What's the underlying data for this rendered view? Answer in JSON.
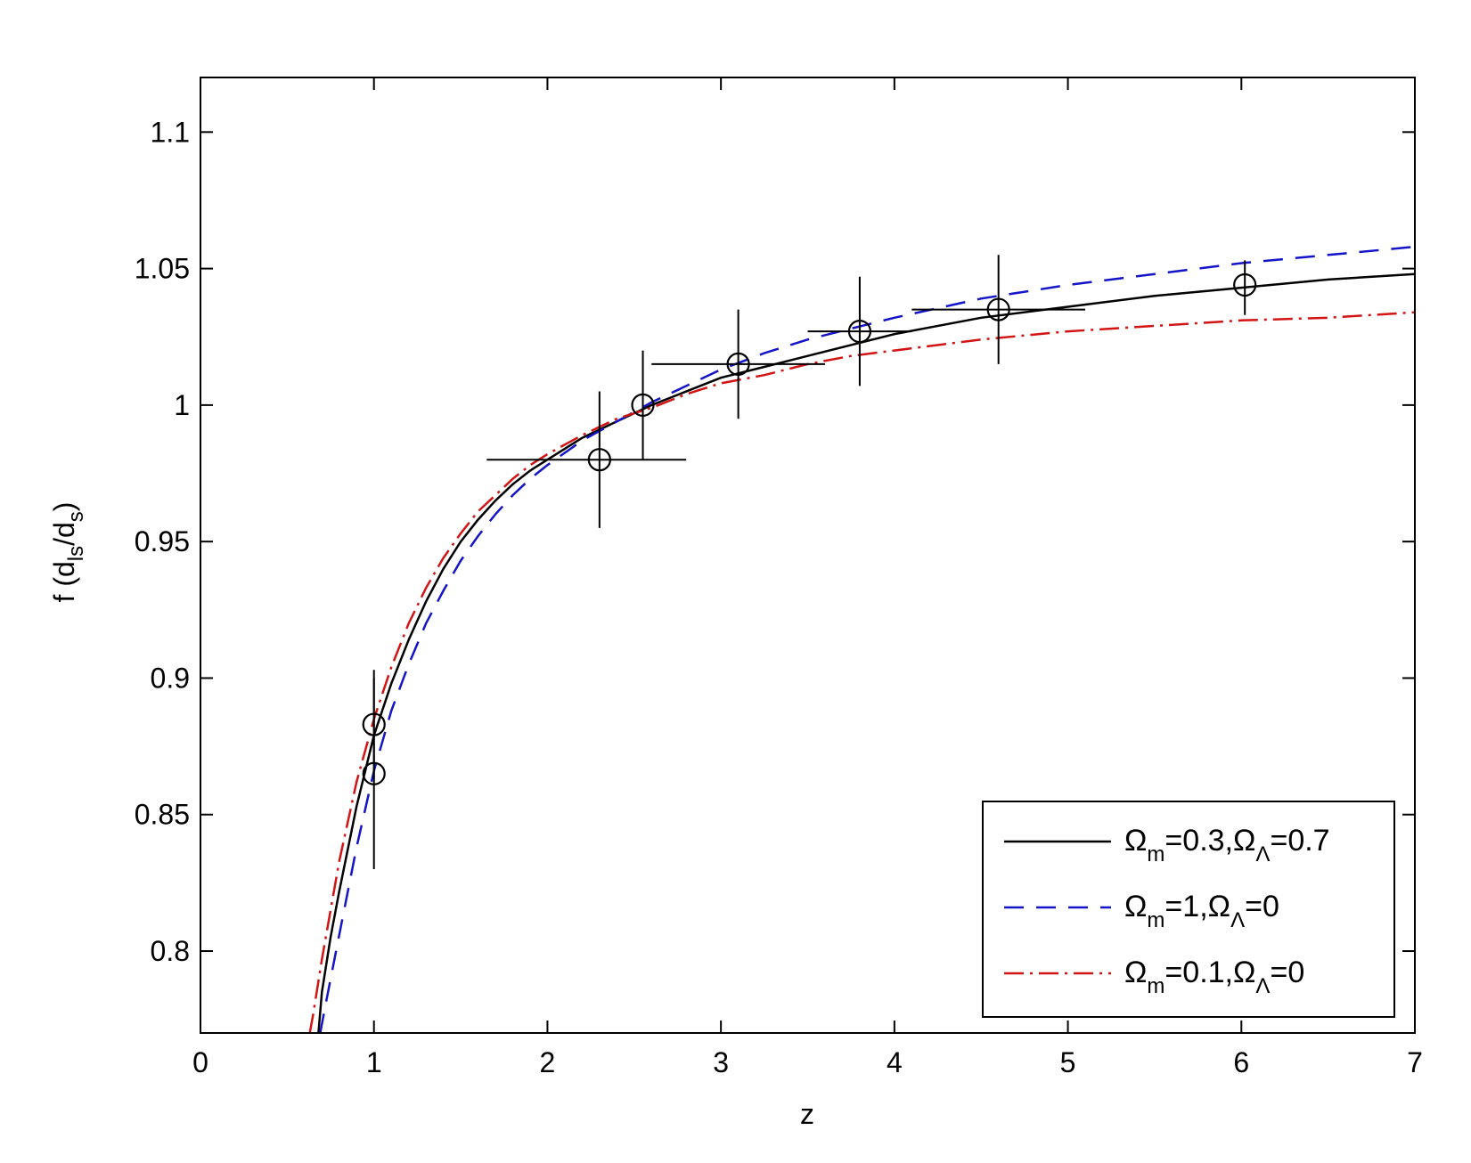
{
  "chart_data": {
    "type": "line",
    "title": "",
    "xlabel": "z",
    "ylabel": {
      "prefix": "f (d",
      "sub1": "ls",
      "mid": "/d",
      "sub2": "s",
      "suffix": ")"
    },
    "xlim": [
      0,
      7
    ],
    "ylim": [
      0.77,
      1.12
    ],
    "xticks": [
      0,
      1,
      2,
      3,
      4,
      5,
      6,
      7
    ],
    "xtick_labels": [
      "0",
      "1",
      "2",
      "3",
      "4",
      "5",
      "6",
      "7"
    ],
    "yticks": [
      0.8,
      0.85,
      0.9,
      0.95,
      1.0,
      1.05,
      1.1
    ],
    "ytick_labels": [
      "0.8",
      "0.85",
      "0.9",
      "0.95",
      "1",
      "1.05",
      "1.1"
    ],
    "grid": false,
    "legend_position": "bottom-right",
    "series": [
      {
        "legend": {
          "om": "0.3",
          "ol": "0.7"
        },
        "color": "#000000",
        "style": "solid",
        "points": [
          [
            0.68,
            0.77
          ],
          [
            0.7,
            0.785
          ],
          [
            0.75,
            0.805
          ],
          [
            0.8,
            0.822
          ],
          [
            0.9,
            0.853
          ],
          [
            1.0,
            0.879
          ],
          [
            1.1,
            0.898
          ],
          [
            1.2,
            0.914
          ],
          [
            1.3,
            0.928
          ],
          [
            1.4,
            0.94
          ],
          [
            1.5,
            0.95
          ],
          [
            1.6,
            0.958
          ],
          [
            1.7,
            0.965
          ],
          [
            1.8,
            0.971
          ],
          [
            1.9,
            0.976
          ],
          [
            2.0,
            0.98
          ],
          [
            2.2,
            0.988
          ],
          [
            2.4,
            0.994
          ],
          [
            2.6,
            1.0
          ],
          [
            2.8,
            1.005
          ],
          [
            3.0,
            1.01
          ],
          [
            3.25,
            1.014
          ],
          [
            3.5,
            1.018
          ],
          [
            3.75,
            1.022
          ],
          [
            4.0,
            1.026
          ],
          [
            4.5,
            1.032
          ],
          [
            5.0,
            1.036
          ],
          [
            5.5,
            1.04
          ],
          [
            6.0,
            1.043
          ],
          [
            6.5,
            1.046
          ],
          [
            7.0,
            1.048
          ]
        ]
      },
      {
        "legend": {
          "om": "1",
          "ol": "0"
        },
        "color": "#1414c8",
        "style": "dashed",
        "points": [
          [
            0.69,
            0.77
          ],
          [
            0.72,
            0.78
          ],
          [
            0.8,
            0.806
          ],
          [
            0.9,
            0.838
          ],
          [
            1.0,
            0.866
          ],
          [
            1.1,
            0.888
          ],
          [
            1.2,
            0.905
          ],
          [
            1.3,
            0.92
          ],
          [
            1.4,
            0.932
          ],
          [
            1.5,
            0.943
          ],
          [
            1.6,
            0.952
          ],
          [
            1.7,
            0.96
          ],
          [
            1.8,
            0.967
          ],
          [
            1.9,
            0.973
          ],
          [
            2.0,
            0.978
          ],
          [
            2.2,
            0.987
          ],
          [
            2.4,
            0.994
          ],
          [
            2.6,
            1.001
          ],
          [
            2.8,
            1.007
          ],
          [
            3.0,
            1.013
          ],
          [
            3.25,
            1.019
          ],
          [
            3.5,
            1.024
          ],
          [
            3.75,
            1.028
          ],
          [
            4.0,
            1.032
          ],
          [
            4.5,
            1.039
          ],
          [
            5.0,
            1.044
          ],
          [
            5.5,
            1.048
          ],
          [
            6.0,
            1.052
          ],
          [
            6.5,
            1.055
          ],
          [
            7.0,
            1.058
          ]
        ]
      },
      {
        "legend": {
          "om": "0.1",
          "ol": "0"
        },
        "color": "#d21414",
        "style": "dashdot",
        "points": [
          [
            0.63,
            0.77
          ],
          [
            0.65,
            0.777
          ],
          [
            0.7,
            0.797
          ],
          [
            0.8,
            0.833
          ],
          [
            0.9,
            0.862
          ],
          [
            1.0,
            0.885
          ],
          [
            1.1,
            0.904
          ],
          [
            1.2,
            0.92
          ],
          [
            1.3,
            0.933
          ],
          [
            1.4,
            0.944
          ],
          [
            1.5,
            0.953
          ],
          [
            1.6,
            0.961
          ],
          [
            1.7,
            0.967
          ],
          [
            1.8,
            0.973
          ],
          [
            1.9,
            0.978
          ],
          [
            2.0,
            0.982
          ],
          [
            2.2,
            0.989
          ],
          [
            2.4,
            0.995
          ],
          [
            2.6,
            0.999
          ],
          [
            2.8,
            1.004
          ],
          [
            3.0,
            1.008
          ],
          [
            3.25,
            1.011
          ],
          [
            3.5,
            1.015
          ],
          [
            3.75,
            1.018
          ],
          [
            4.0,
            1.02
          ],
          [
            4.5,
            1.024
          ],
          [
            5.0,
            1.027
          ],
          [
            5.5,
            1.029
          ],
          [
            6.0,
            1.031
          ],
          [
            6.5,
            1.032
          ],
          [
            7.0,
            1.034
          ]
        ]
      }
    ],
    "data_points": [
      {
        "x": 1.0,
        "y": 0.883,
        "yerr": [
          0.863,
          0.903
        ]
      },
      {
        "x": 1.0,
        "y": 0.865,
        "yerr": [
          0.83,
          0.9
        ]
      },
      {
        "x": 2.3,
        "y": 0.98,
        "xerr": [
          1.65,
          2.8
        ],
        "yerr": [
          0.955,
          1.005
        ]
      },
      {
        "x": 2.55,
        "y": 1.0,
        "yerr": [
          0.98,
          1.02
        ]
      },
      {
        "x": 3.1,
        "y": 1.015,
        "xerr": [
          2.6,
          3.6
        ],
        "yerr": [
          0.995,
          1.035
        ]
      },
      {
        "x": 3.8,
        "y": 1.027,
        "xerr": [
          3.5,
          4.1
        ],
        "yerr": [
          1.007,
          1.047
        ]
      },
      {
        "x": 4.6,
        "y": 1.035,
        "xerr": [
          4.1,
          5.1
        ],
        "yerr": [
          1.015,
          1.055
        ]
      },
      {
        "x": 6.02,
        "y": 1.044,
        "yerr": [
          1.033,
          1.053
        ]
      }
    ]
  }
}
